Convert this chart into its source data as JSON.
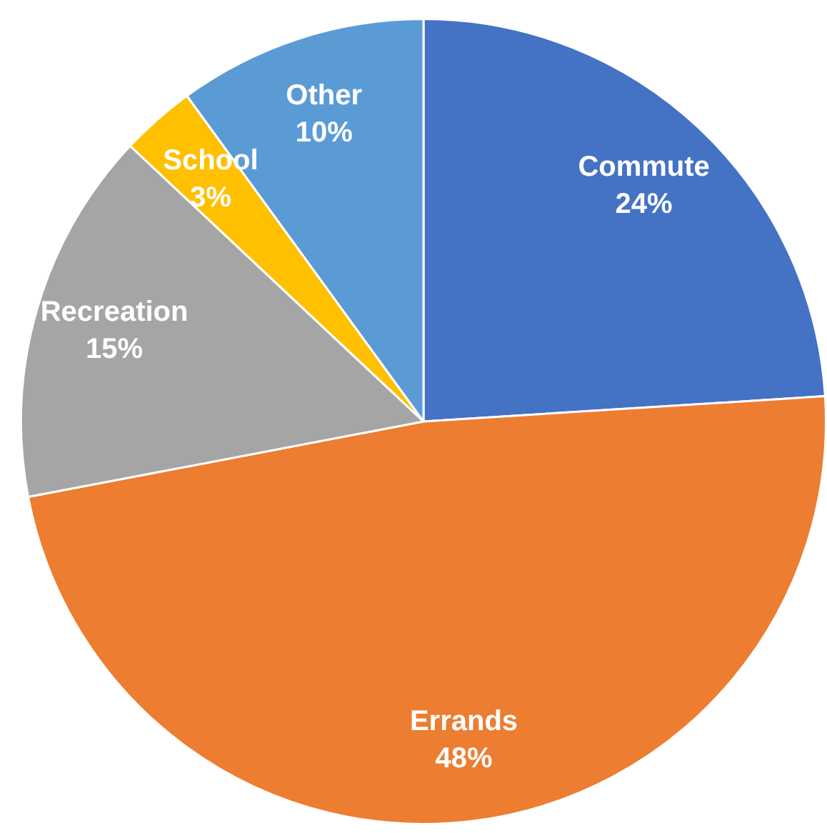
{
  "chart_data": {
    "type": "pie",
    "categories": [
      "Commute",
      "Errands",
      "Recreation",
      "School",
      "Other"
    ],
    "values": [
      24,
      48,
      15,
      3,
      10
    ],
    "colors": [
      "#4472c4",
      "#ed7d31",
      "#a5a5a5",
      "#ffc000",
      "#5b9bd5"
    ],
    "value_labels": [
      "24%",
      "48%",
      "15%",
      "3%",
      "10%"
    ],
    "legend": false
  }
}
